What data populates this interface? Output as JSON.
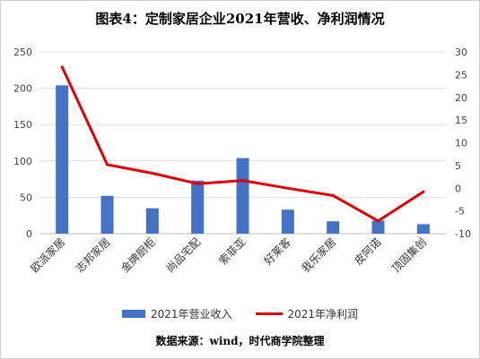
{
  "chart_data": {
    "type": "bar+line",
    "title": "图表4：定制家居企业2021年营收、净利润情况",
    "categories": [
      "欧派家居",
      "志邦家居",
      "金牌厨柜",
      "尚品宅配",
      "索菲亚",
      "好莱客",
      "我乐家居",
      "皮阿诺",
      "顶固集创"
    ],
    "series": [
      {
        "name": "2021年营业收入",
        "type": "bar",
        "axis": "left",
        "color": "#4472c4",
        "values": [
          204,
          52,
          35,
          73,
          104,
          33,
          17,
          18,
          13
        ]
      },
      {
        "name": "2021年净利润",
        "type": "line",
        "axis": "right",
        "color": "#e00000",
        "values": [
          26.7,
          5.2,
          3.3,
          1.0,
          1.7,
          0.0,
          -1.6,
          -7.2,
          -0.8
        ]
      }
    ],
    "y_left": {
      "min": 0,
      "max": 250,
      "ticks": [
        0,
        50,
        100,
        150,
        200,
        250
      ]
    },
    "y_right": {
      "min": -10,
      "max": 30,
      "ticks": [
        -10,
        -5,
        0,
        5,
        10,
        15,
        20,
        25,
        30
      ]
    },
    "legend_position": "bottom",
    "grid": true
  },
  "source_note": "数据来源：wind，时代商学院整理"
}
